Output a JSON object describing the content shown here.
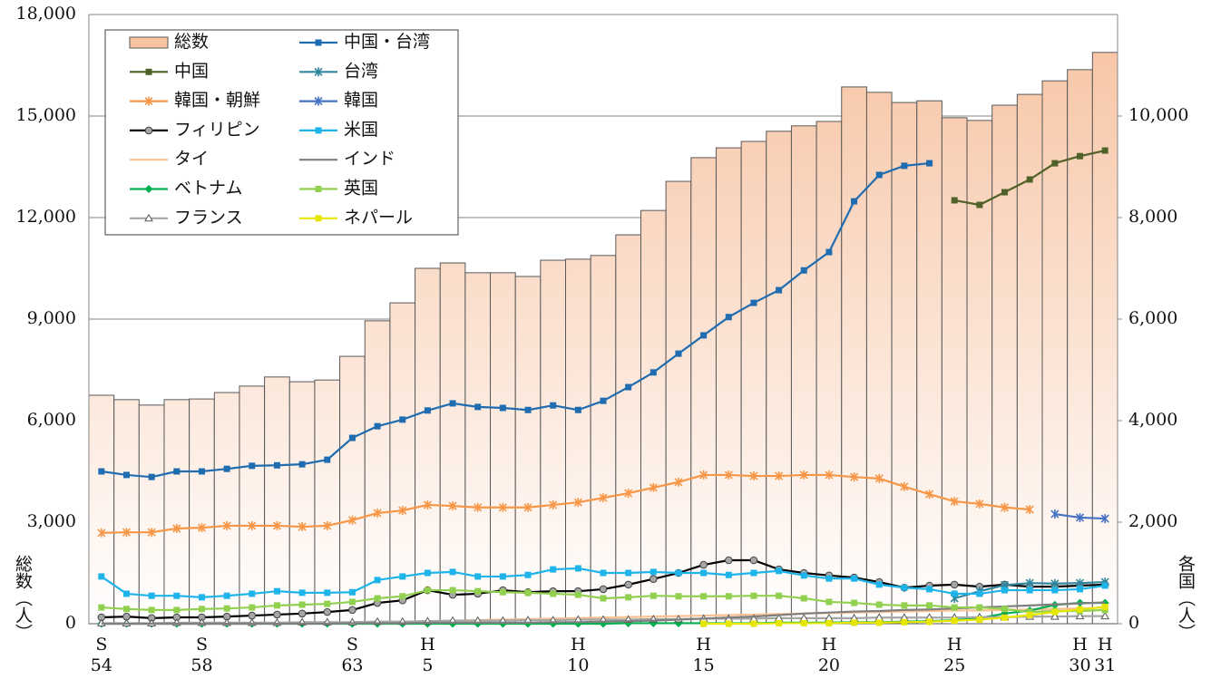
{
  "chart_data": {
    "type": "combo",
    "categories": [
      "S\n54",
      null,
      null,
      null,
      "S\n58",
      null,
      null,
      null,
      null,
      null,
      "S\n63",
      null,
      null,
      "H\n5",
      null,
      null,
      null,
      null,
      null,
      "H\n10",
      null,
      null,
      null,
      null,
      "H\n15",
      null,
      null,
      null,
      null,
      "H\n20",
      null,
      null,
      null,
      null,
      "H\n25",
      null,
      null,
      null,
      null,
      "H\n30",
      "H\n31"
    ],
    "ylabel": "総数（人）",
    "y2label": "各国（人）",
    "ylim": [
      0,
      18000
    ],
    "yticks": [
      0,
      {
        "value": 3000,
        "label": "3,000"
      },
      {
        "value": 6000,
        "label": "6,000"
      },
      {
        "value": 9000,
        "label": "9,000"
      },
      {
        "value": 12000,
        "label": "12,000"
      },
      {
        "value": 15000,
        "label": "15,000"
      },
      {
        "value": 18000,
        "label": "18,000"
      }
    ],
    "y2lim": [
      0,
      12000
    ],
    "y2ticks": [
      0,
      {
        "value": 2000,
        "label": "2,000"
      },
      {
        "value": 4000,
        "label": "4,000"
      },
      {
        "value": 6000,
        "label": "6,000"
      },
      {
        "value": 8000,
        "label": "8,000"
      },
      {
        "value": 10000,
        "label": "10,000"
      }
    ],
    "grid": true,
    "legend": "upper left",
    "bars": {
      "name": "総数",
      "color": "#f7c3a2",
      "values": [
        6750,
        6620,
        6460,
        6620,
        6640,
        6830,
        7020,
        7290,
        7150,
        7200,
        7900,
        8950,
        9480,
        10500,
        10660,
        10370,
        10370,
        10260,
        10740,
        10770,
        10880,
        11490,
        12210,
        13070,
        13770,
        14060,
        14250,
        14550,
        14710,
        14840,
        15860,
        15700,
        15400,
        15450,
        14950,
        14870,
        15320,
        15640,
        16040,
        16370,
        16880
      ]
    },
    "series": [
      {
        "name": "中国",
        "color": "#4f6228",
        "marker": "square",
        "axis": "y2",
        "values": [
          null,
          null,
          null,
          null,
          null,
          null,
          null,
          null,
          null,
          null,
          null,
          null,
          null,
          null,
          null,
          null,
          null,
          null,
          null,
          null,
          null,
          null,
          null,
          null,
          null,
          null,
          null,
          null,
          null,
          null,
          null,
          null,
          null,
          null,
          8340,
          8250,
          8500,
          8750,
          9070,
          9210,
          9320
        ]
      },
      {
        "name": "韓国・朝鮮",
        "color": "#f79646",
        "marker": "asterisk",
        "axis": "y2",
        "values": [
          1790,
          1800,
          1800,
          1875,
          1890,
          1930,
          1930,
          1930,
          1910,
          1930,
          2040,
          2180,
          2230,
          2340,
          2320,
          2290,
          2290,
          2290,
          2340,
          2390,
          2480,
          2570,
          2680,
          2790,
          2930,
          2930,
          2910,
          2910,
          2930,
          2930,
          2890,
          2860,
          2700,
          2550,
          2410,
          2360,
          2290,
          2250,
          null,
          null,
          null
        ]
      },
      {
        "name": "フィリピン",
        "color": "#000000",
        "marker": "circle",
        "marker_color": "#a6a6a6",
        "axis": "y2",
        "values": [
          125,
          140,
          110,
          125,
          125,
          140,
          160,
          180,
          200,
          230,
          270,
          410,
          460,
          660,
          570,
          590,
          660,
          620,
          640,
          640,
          680,
          770,
          880,
          1000,
          1160,
          1250,
          1250,
          1070,
          1000,
          950,
          910,
          820,
          710,
          750,
          770,
          730,
          770,
          730,
          730,
          750,
          770
        ]
      },
      {
        "name": "タイ",
        "color": "#fac090",
        "marker": "none",
        "axis": "y2",
        "values": [
          0,
          0,
          0,
          0,
          0,
          0,
          0,
          10,
          10,
          20,
          20,
          30,
          40,
          50,
          60,
          70,
          80,
          90,
          100,
          110,
          120,
          130,
          140,
          150,
          160,
          170,
          180,
          190,
          200,
          210,
          220,
          230,
          240,
          250,
          260,
          260,
          270,
          280,
          290,
          300,
          320
        ]
      },
      {
        "name": "ベトナム",
        "color": "#00b050",
        "marker": "diamond",
        "axis": "y2",
        "values": [
          0,
          0,
          0,
          0,
          0,
          0,
          0,
          0,
          0,
          0,
          0,
          0,
          0,
          0,
          0,
          0,
          0,
          0,
          0,
          0,
          0,
          10,
          10,
          10,
          10,
          10,
          10,
          20,
          20,
          20,
          30,
          30,
          40,
          50,
          70,
          110,
          200,
          260,
          370,
          410,
          410
        ]
      },
      {
        "name": "フランス",
        "color": "#a6a6a6",
        "marker": "triangle",
        "axis": "y2",
        "values": [
          10,
          10,
          10,
          20,
          20,
          20,
          20,
          20,
          30,
          30,
          30,
          40,
          40,
          50,
          60,
          60,
          60,
          70,
          70,
          80,
          80,
          80,
          90,
          90,
          100,
          100,
          100,
          110,
          110,
          110,
          110,
          120,
          120,
          120,
          120,
          130,
          130,
          140,
          140,
          150,
          150
        ]
      },
      {
        "name": "中国・台湾",
        "color": "#1f6cb0",
        "marker": "square",
        "axis": "y2",
        "values": [
          3000,
          2930,
          2890,
          3000,
          3000,
          3050,
          3110,
          3120,
          3140,
          3230,
          3660,
          3890,
          4020,
          4200,
          4340,
          4270,
          4250,
          4210,
          4300,
          4210,
          4390,
          4660,
          4950,
          5320,
          5680,
          6040,
          6320,
          6570,
          6960,
          7320,
          8320,
          8840,
          9020,
          9070,
          null,
          null,
          null,
          null,
          null,
          null,
          null
        ]
      },
      {
        "name": "台湾",
        "color": "#31859c",
        "marker": "asterisk",
        "axis": "y2",
        "values": [
          null,
          null,
          null,
          null,
          null,
          null,
          null,
          null,
          null,
          null,
          null,
          null,
          null,
          null,
          null,
          null,
          null,
          null,
          null,
          null,
          null,
          null,
          null,
          null,
          null,
          null,
          null,
          null,
          null,
          null,
          null,
          null,
          null,
          null,
          500,
          640,
          760,
          800,
          790,
          800,
          820
        ]
      },
      {
        "name": "韓国",
        "color": "#4472c4",
        "marker": "asterisk",
        "axis": "y2",
        "values": [
          null,
          null,
          null,
          null,
          null,
          null,
          null,
          null,
          null,
          null,
          null,
          null,
          null,
          null,
          null,
          null,
          null,
          null,
          null,
          null,
          null,
          null,
          null,
          null,
          null,
          null,
          null,
          null,
          null,
          null,
          null,
          null,
          null,
          null,
          null,
          null,
          null,
          null,
          2160,
          2090,
          2070
        ]
      },
      {
        "name": "米国",
        "color": "#1eb4ea",
        "marker": "square",
        "axis": "y2",
        "values": [
          930,
          590,
          550,
          550,
          520,
          550,
          590,
          640,
          610,
          610,
          620,
          860,
          930,
          1000,
          1020,
          930,
          930,
          960,
          1070,
          1090,
          1000,
          1000,
          1020,
          1000,
          1000,
          960,
          1000,
          1040,
          950,
          890,
          890,
          770,
          710,
          680,
          590,
          590,
          660,
          660,
          660,
          680,
          750
        ]
      },
      {
        "name": "インド",
        "color": "#7f7f7f",
        "marker": "none",
        "axis": "y2",
        "values": [
          0,
          0,
          0,
          0,
          0,
          0,
          0,
          0,
          0,
          0,
          10,
          10,
          10,
          20,
          20,
          20,
          20,
          20,
          30,
          30,
          40,
          50,
          60,
          80,
          100,
          120,
          140,
          170,
          200,
          220,
          240,
          250,
          270,
          280,
          300,
          320,
          340,
          360,
          380,
          400,
          420
        ]
      },
      {
        "name": "英国",
        "color": "#92d050",
        "marker": "square",
        "axis": "y2",
        "values": [
          320,
          290,
          270,
          270,
          290,
          300,
          320,
          360,
          375,
          390,
          430,
          500,
          540,
          660,
          660,
          640,
          620,
          610,
          590,
          570,
          500,
          520,
          550,
          540,
          540,
          540,
          550,
          550,
          500,
          430,
          410,
          375,
          360,
          360,
          320,
          320,
          290,
          230,
          250,
          250,
          270
        ]
      },
      {
        "name": "ネパール",
        "color": "#e6e600",
        "marker": "square",
        "axis": "y2",
        "values": [
          null,
          null,
          null,
          null,
          null,
          null,
          null,
          null,
          null,
          null,
          null,
          null,
          null,
          null,
          null,
          null,
          null,
          null,
          null,
          null,
          null,
          null,
          null,
          null,
          0,
          0,
          0,
          10,
          10,
          10,
          20,
          20,
          30,
          40,
          60,
          80,
          120,
          170,
          230,
          280,
          330
        ]
      }
    ]
  }
}
